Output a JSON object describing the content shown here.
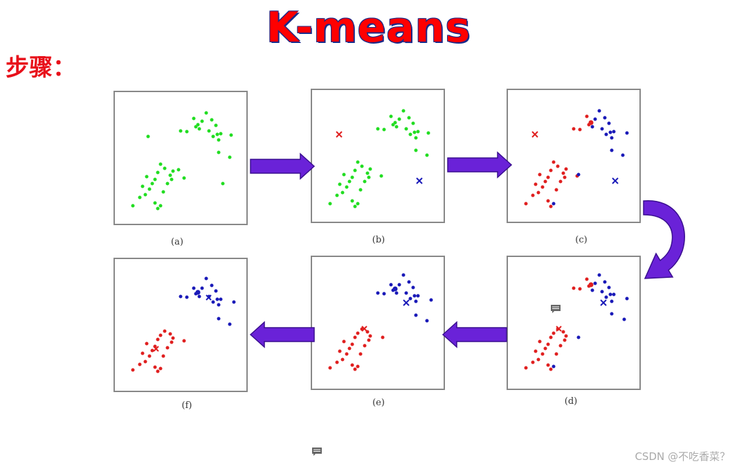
{
  "title": "K-means",
  "steps_label": "步骤：",
  "captions": [
    "(a)",
    "(b)",
    "(c)",
    "(d)",
    "(e)",
    "(f)"
  ],
  "watermark": "CSDN @不吃香菜？",
  "colors": {
    "title": "#ff0000",
    "steps": "#e8101a",
    "unassigned": "#22dd22",
    "cluster_red": "#e02020",
    "cluster_blue": "#1a1ab8",
    "arrow": "#6a22d8"
  },
  "icons": [
    "comment-icon",
    "comment-icon"
  ]
}
